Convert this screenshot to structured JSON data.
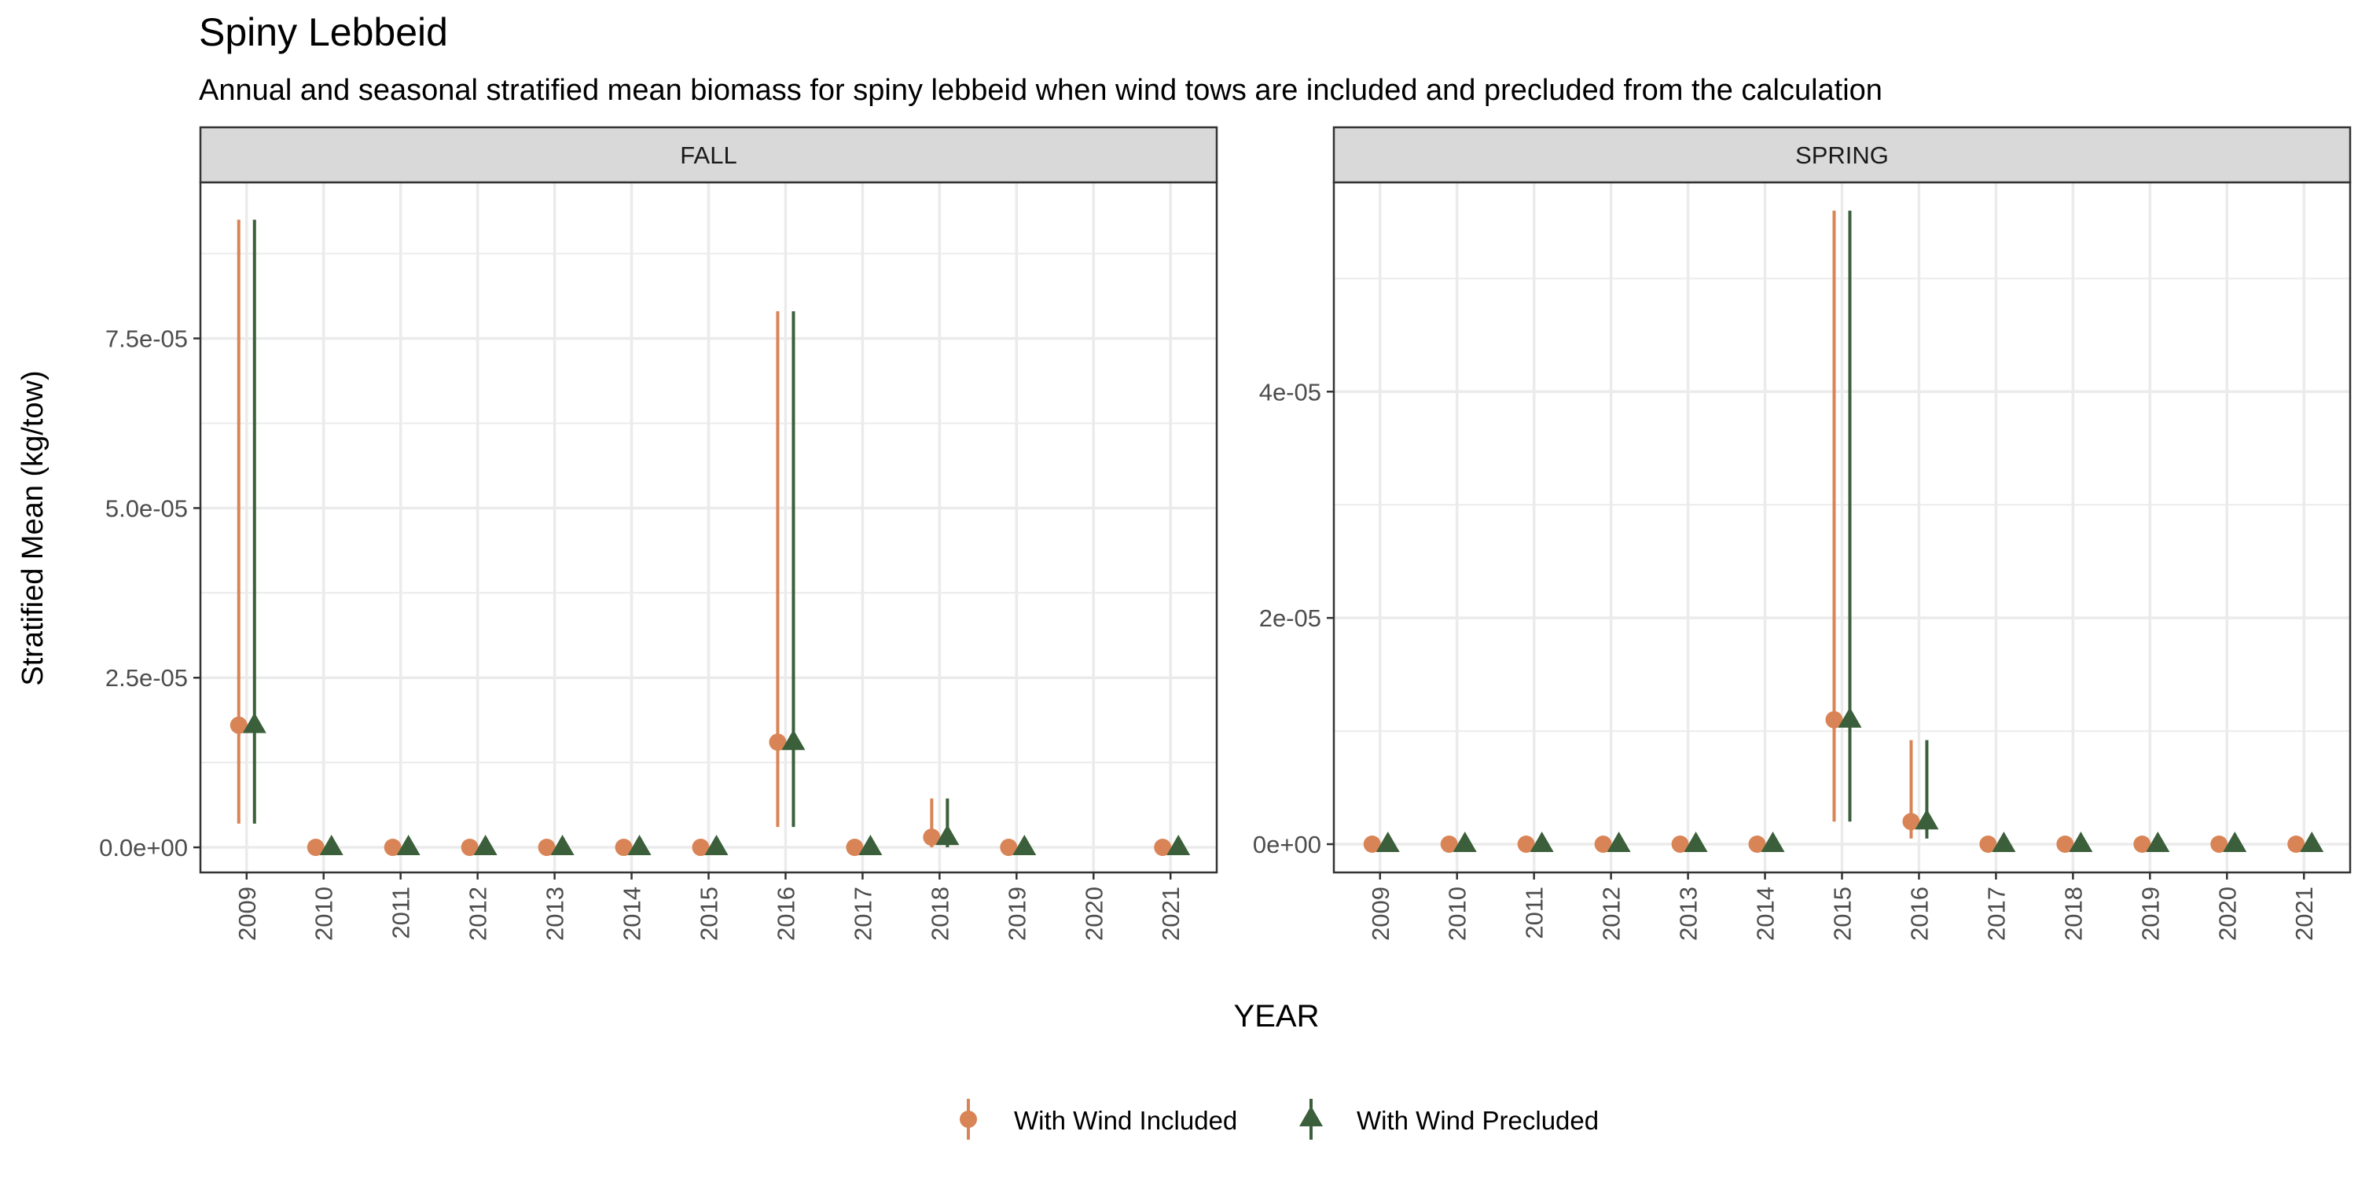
{
  "title": "Spiny Lebbeid",
  "subtitle": "Annual and seasonal stratified mean biomass for spiny lebbeid when wind tows are included and precluded from the calculation",
  "ylabel": "Stratified Mean (kg/tow)",
  "xlabel": "YEAR",
  "legend": {
    "placement": "bottom",
    "items": [
      {
        "label": "With Wind Included",
        "color": "#D98456",
        "shape": "circle"
      },
      {
        "label": "With Wind Precluded",
        "color": "#3B5F3A",
        "shape": "triangle"
      }
    ]
  },
  "colors": {
    "included": "#D98456",
    "precluded": "#3B5F3A",
    "strip_bg": "#D9D9D9",
    "grid": "#EBEBEB",
    "panel_border": "#333333"
  },
  "chart_data": [
    {
      "type": "scatter",
      "panel": "FALL",
      "grid": true,
      "x": [
        "2009",
        "2010",
        "2011",
        "2012",
        "2013",
        "2014",
        "2015",
        "2016",
        "2017",
        "2018",
        "2019",
        "2020",
        "2021"
      ],
      "ylim": [
        -3.7e-06,
        9.8e-05
      ],
      "yticks": [
        0,
        2.5e-05,
        5e-05,
        7.5e-05
      ],
      "ytick_labels": [
        "0.0e+00",
        "2.5e-05",
        "5.0e-05",
        "7.5e-05"
      ],
      "series": [
        {
          "name": "With Wind Included",
          "values": [
            1.8e-05,
            0,
            0,
            0,
            0,
            0,
            0,
            1.55e-05,
            0,
            1.5e-06,
            0,
            null,
            0
          ],
          "lower": [
            3.5e-06,
            0,
            0,
            0,
            0,
            0,
            0,
            3e-06,
            0,
            0,
            0,
            null,
            0
          ],
          "upper": [
            9.25e-05,
            0,
            0,
            0,
            0,
            0,
            0,
            7.9e-05,
            0,
            7.2e-06,
            0,
            null,
            0
          ]
        },
        {
          "name": "With Wind Precluded",
          "values": [
            1.8e-05,
            0,
            0,
            0,
            0,
            0,
            0,
            1.55e-05,
            0,
            1.5e-06,
            0,
            null,
            0
          ],
          "lower": [
            3.5e-06,
            0,
            0,
            0,
            0,
            0,
            0,
            3e-06,
            0,
            0,
            0,
            null,
            0
          ],
          "upper": [
            9.25e-05,
            0,
            0,
            0,
            0,
            0,
            0,
            7.9e-05,
            0,
            7.2e-06,
            0,
            null,
            0
          ]
        }
      ]
    },
    {
      "type": "scatter",
      "panel": "SPRING",
      "grid": true,
      "x": [
        "2009",
        "2010",
        "2011",
        "2012",
        "2013",
        "2014",
        "2015",
        "2016",
        "2017",
        "2018",
        "2019",
        "2020",
        "2021"
      ],
      "ylim": [
        -2.5e-06,
        5.85e-05
      ],
      "yticks": [
        0,
        2e-05,
        4e-05
      ],
      "ytick_labels": [
        "0e+00",
        "2e-05",
        "4e-05"
      ],
      "series": [
        {
          "name": "With Wind Included",
          "values": [
            0,
            0,
            0,
            0,
            0,
            0,
            1.1e-05,
            2e-06,
            0,
            0,
            0,
            0,
            0
          ],
          "lower": [
            0,
            0,
            0,
            0,
            0,
            0,
            2e-06,
            5e-07,
            0,
            0,
            0,
            0,
            0
          ],
          "upper": [
            0,
            0,
            0,
            0,
            0,
            0,
            5.6e-05,
            9.2e-06,
            0,
            0,
            0,
            0,
            0
          ]
        },
        {
          "name": "With Wind Precluded",
          "values": [
            0,
            0,
            0,
            0,
            0,
            0,
            1.1e-05,
            2e-06,
            0,
            0,
            0,
            0,
            0
          ],
          "lower": [
            0,
            0,
            0,
            0,
            0,
            0,
            2e-06,
            5e-07,
            0,
            0,
            0,
            0,
            0
          ],
          "upper": [
            0,
            0,
            0,
            0,
            0,
            0,
            5.6e-05,
            9.2e-06,
            0,
            0,
            0,
            0,
            0
          ]
        }
      ]
    }
  ]
}
